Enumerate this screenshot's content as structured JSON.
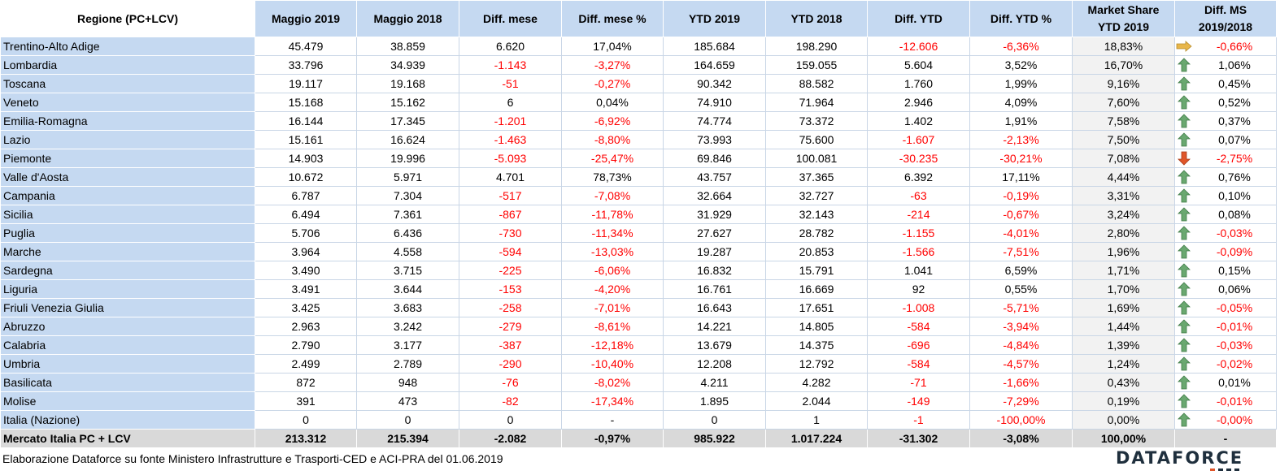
{
  "header": {
    "region": "Regione (PC+LCV)",
    "may2019": "Maggio 2019",
    "may2018": "Maggio 2018",
    "diff_month": "Diff. mese",
    "diff_month_pct": "Diff. mese %",
    "ytd2019": "YTD 2019",
    "ytd2018": "YTD 2018",
    "diff_ytd": "Diff. YTD",
    "diff_ytd_pct": "Diff. YTD %",
    "ms_line1": "Market Share",
    "ms_line2": "YTD 2019",
    "dms_line1": "Diff. MS",
    "dms_line2": "2019/2018"
  },
  "colors": {
    "header_bg": "#c5d9f1",
    "negative": "#ff0000",
    "arrow_up": "#6aa870",
    "arrow_down": "#e0562a",
    "arrow_right": "#e8b64a",
    "total_bg": "#d9d9d9"
  },
  "rows": [
    {
      "region": "Trentino-Alto Adige",
      "may2019": "45.479",
      "may2018": "38.859",
      "dm": "6.620",
      "dm_neg": false,
      "dmp": "17,04%",
      "dmp_neg": false,
      "ytd2019": "185.684",
      "ytd2018": "198.290",
      "dy": "-12.606",
      "dy_neg": true,
      "dyp": "-6,36%",
      "dyp_neg": true,
      "ms": "18,83%",
      "icon": "arrow-right-icon",
      "dms": "-0,66%",
      "dms_neg": true
    },
    {
      "region": "Lombardia",
      "may2019": "33.796",
      "may2018": "34.939",
      "dm": "-1.143",
      "dm_neg": true,
      "dmp": "-3,27%",
      "dmp_neg": true,
      "ytd2019": "164.659",
      "ytd2018": "159.055",
      "dy": "5.604",
      "dy_neg": false,
      "dyp": "3,52%",
      "dyp_neg": false,
      "ms": "16,70%",
      "icon": "arrow-up-icon",
      "dms": "1,06%",
      "dms_neg": false
    },
    {
      "region": "Toscana",
      "may2019": "19.117",
      "may2018": "19.168",
      "dm": "-51",
      "dm_neg": true,
      "dmp": "-0,27%",
      "dmp_neg": true,
      "ytd2019": "90.342",
      "ytd2018": "88.582",
      "dy": "1.760",
      "dy_neg": false,
      "dyp": "1,99%",
      "dyp_neg": false,
      "ms": "9,16%",
      "icon": "arrow-up-icon",
      "dms": "0,45%",
      "dms_neg": false
    },
    {
      "region": "Veneto",
      "may2019": "15.168",
      "may2018": "15.162",
      "dm": "6",
      "dm_neg": false,
      "dmp": "0,04%",
      "dmp_neg": false,
      "ytd2019": "74.910",
      "ytd2018": "71.964",
      "dy": "2.946",
      "dy_neg": false,
      "dyp": "4,09%",
      "dyp_neg": false,
      "ms": "7,60%",
      "icon": "arrow-up-icon",
      "dms": "0,52%",
      "dms_neg": false
    },
    {
      "region": "Emilia-Romagna",
      "may2019": "16.144",
      "may2018": "17.345",
      "dm": "-1.201",
      "dm_neg": true,
      "dmp": "-6,92%",
      "dmp_neg": true,
      "ytd2019": "74.774",
      "ytd2018": "73.372",
      "dy": "1.402",
      "dy_neg": false,
      "dyp": "1,91%",
      "dyp_neg": false,
      "ms": "7,58%",
      "icon": "arrow-up-icon",
      "dms": "0,37%",
      "dms_neg": false
    },
    {
      "region": "Lazio",
      "may2019": "15.161",
      "may2018": "16.624",
      "dm": "-1.463",
      "dm_neg": true,
      "dmp": "-8,80%",
      "dmp_neg": true,
      "ytd2019": "73.993",
      "ytd2018": "75.600",
      "dy": "-1.607",
      "dy_neg": true,
      "dyp": "-2,13%",
      "dyp_neg": true,
      "ms": "7,50%",
      "icon": "arrow-up-icon",
      "dms": "0,07%",
      "dms_neg": false
    },
    {
      "region": "Piemonte",
      "may2019": "14.903",
      "may2018": "19.996",
      "dm": "-5.093",
      "dm_neg": true,
      "dmp": "-25,47%",
      "dmp_neg": true,
      "ytd2019": "69.846",
      "ytd2018": "100.081",
      "dy": "-30.235",
      "dy_neg": true,
      "dyp": "-30,21%",
      "dyp_neg": true,
      "ms": "7,08%",
      "icon": "arrow-down-icon",
      "dms": "-2,75%",
      "dms_neg": true
    },
    {
      "region": "Valle d'Aosta",
      "may2019": "10.672",
      "may2018": "5.971",
      "dm": "4.701",
      "dm_neg": false,
      "dmp": "78,73%",
      "dmp_neg": false,
      "ytd2019": "43.757",
      "ytd2018": "37.365",
      "dy": "6.392",
      "dy_neg": false,
      "dyp": "17,11%",
      "dyp_neg": false,
      "ms": "4,44%",
      "icon": "arrow-up-icon",
      "dms": "0,76%",
      "dms_neg": false
    },
    {
      "region": "Campania",
      "may2019": "6.787",
      "may2018": "7.304",
      "dm": "-517",
      "dm_neg": true,
      "dmp": "-7,08%",
      "dmp_neg": true,
      "ytd2019": "32.664",
      "ytd2018": "32.727",
      "dy": "-63",
      "dy_neg": true,
      "dyp": "-0,19%",
      "dyp_neg": true,
      "ms": "3,31%",
      "icon": "arrow-up-icon",
      "dms": "0,10%",
      "dms_neg": false
    },
    {
      "region": "Sicilia",
      "may2019": "6.494",
      "may2018": "7.361",
      "dm": "-867",
      "dm_neg": true,
      "dmp": "-11,78%",
      "dmp_neg": true,
      "ytd2019": "31.929",
      "ytd2018": "32.143",
      "dy": "-214",
      "dy_neg": true,
      "dyp": "-0,67%",
      "dyp_neg": true,
      "ms": "3,24%",
      "icon": "arrow-up-icon",
      "dms": "0,08%",
      "dms_neg": false
    },
    {
      "region": "Puglia",
      "may2019": "5.706",
      "may2018": "6.436",
      "dm": "-730",
      "dm_neg": true,
      "dmp": "-11,34%",
      "dmp_neg": true,
      "ytd2019": "27.627",
      "ytd2018": "28.782",
      "dy": "-1.155",
      "dy_neg": true,
      "dyp": "-4,01%",
      "dyp_neg": true,
      "ms": "2,80%",
      "icon": "arrow-up-icon",
      "dms": "-0,03%",
      "dms_neg": true
    },
    {
      "region": "Marche",
      "may2019": "3.964",
      "may2018": "4.558",
      "dm": "-594",
      "dm_neg": true,
      "dmp": "-13,03%",
      "dmp_neg": true,
      "ytd2019": "19.287",
      "ytd2018": "20.853",
      "dy": "-1.566",
      "dy_neg": true,
      "dyp": "-7,51%",
      "dyp_neg": true,
      "ms": "1,96%",
      "icon": "arrow-up-icon",
      "dms": "-0,09%",
      "dms_neg": true
    },
    {
      "region": "Sardegna",
      "may2019": "3.490",
      "may2018": "3.715",
      "dm": "-225",
      "dm_neg": true,
      "dmp": "-6,06%",
      "dmp_neg": true,
      "ytd2019": "16.832",
      "ytd2018": "15.791",
      "dy": "1.041",
      "dy_neg": false,
      "dyp": "6,59%",
      "dyp_neg": false,
      "ms": "1,71%",
      "icon": "arrow-up-icon",
      "dms": "0,15%",
      "dms_neg": false
    },
    {
      "region": "Liguria",
      "may2019": "3.491",
      "may2018": "3.644",
      "dm": "-153",
      "dm_neg": true,
      "dmp": "-4,20%",
      "dmp_neg": true,
      "ytd2019": "16.761",
      "ytd2018": "16.669",
      "dy": "92",
      "dy_neg": false,
      "dyp": "0,55%",
      "dyp_neg": false,
      "ms": "1,70%",
      "icon": "arrow-up-icon",
      "dms": "0,06%",
      "dms_neg": false
    },
    {
      "region": "Friuli Venezia Giulia",
      "may2019": "3.425",
      "may2018": "3.683",
      "dm": "-258",
      "dm_neg": true,
      "dmp": "-7,01%",
      "dmp_neg": true,
      "ytd2019": "16.643",
      "ytd2018": "17.651",
      "dy": "-1.008",
      "dy_neg": true,
      "dyp": "-5,71%",
      "dyp_neg": true,
      "ms": "1,69%",
      "icon": "arrow-up-icon",
      "dms": "-0,05%",
      "dms_neg": true
    },
    {
      "region": "Abruzzo",
      "may2019": "2.963",
      "may2018": "3.242",
      "dm": "-279",
      "dm_neg": true,
      "dmp": "-8,61%",
      "dmp_neg": true,
      "ytd2019": "14.221",
      "ytd2018": "14.805",
      "dy": "-584",
      "dy_neg": true,
      "dyp": "-3,94%",
      "dyp_neg": true,
      "ms": "1,44%",
      "icon": "arrow-up-icon",
      "dms": "-0,01%",
      "dms_neg": true
    },
    {
      "region": "Calabria",
      "may2019": "2.790",
      "may2018": "3.177",
      "dm": "-387",
      "dm_neg": true,
      "dmp": "-12,18%",
      "dmp_neg": true,
      "ytd2019": "13.679",
      "ytd2018": "14.375",
      "dy": "-696",
      "dy_neg": true,
      "dyp": "-4,84%",
      "dyp_neg": true,
      "ms": "1,39%",
      "icon": "arrow-up-icon",
      "dms": "-0,03%",
      "dms_neg": true
    },
    {
      "region": "Umbria",
      "may2019": "2.499",
      "may2018": "2.789",
      "dm": "-290",
      "dm_neg": true,
      "dmp": "-10,40%",
      "dmp_neg": true,
      "ytd2019": "12.208",
      "ytd2018": "12.792",
      "dy": "-584",
      "dy_neg": true,
      "dyp": "-4,57%",
      "dyp_neg": true,
      "ms": "1,24%",
      "icon": "arrow-up-icon",
      "dms": "-0,02%",
      "dms_neg": true
    },
    {
      "region": "Basilicata",
      "may2019": "872",
      "may2018": "948",
      "dm": "-76",
      "dm_neg": true,
      "dmp": "-8,02%",
      "dmp_neg": true,
      "ytd2019": "4.211",
      "ytd2018": "4.282",
      "dy": "-71",
      "dy_neg": true,
      "dyp": "-1,66%",
      "dyp_neg": true,
      "ms": "0,43%",
      "icon": "arrow-up-icon",
      "dms": "0,01%",
      "dms_neg": false
    },
    {
      "region": "Molise",
      "may2019": "391",
      "may2018": "473",
      "dm": "-82",
      "dm_neg": true,
      "dmp": "-17,34%",
      "dmp_neg": true,
      "ytd2019": "1.895",
      "ytd2018": "2.044",
      "dy": "-149",
      "dy_neg": true,
      "dyp": "-7,29%",
      "dyp_neg": true,
      "ms": "0,19%",
      "icon": "arrow-up-icon",
      "dms": "-0,01%",
      "dms_neg": true
    },
    {
      "region": "Italia (Nazione)",
      "may2019": "0",
      "may2018": "0",
      "dm": "0",
      "dm_neg": false,
      "dmp": "-",
      "dmp_neg": false,
      "ytd2019": "0",
      "ytd2018": "1",
      "dy": "-1",
      "dy_neg": true,
      "dyp": "-100,00%",
      "dyp_neg": true,
      "ms": "0,00%",
      "icon": "arrow-up-icon",
      "dms": "-0,00%",
      "dms_neg": true
    }
  ],
  "total": {
    "region": "Mercato Italia PC + LCV",
    "may2019": "213.312",
    "may2018": "215.394",
    "dm": "-2.082",
    "dmp": "-0,97%",
    "ytd2019": "985.922",
    "ytd2018": "1.017.224",
    "dy": "-31.302",
    "dyp": "-3,08%",
    "ms": "100,00%",
    "dms": "-"
  },
  "footer": {
    "note": "Elaborazione Dataforce su fonte Ministero Infrastrutture e Trasporti-CED e ACI-PRA del 01.06.2019",
    "logo": "DATAFORCE"
  }
}
